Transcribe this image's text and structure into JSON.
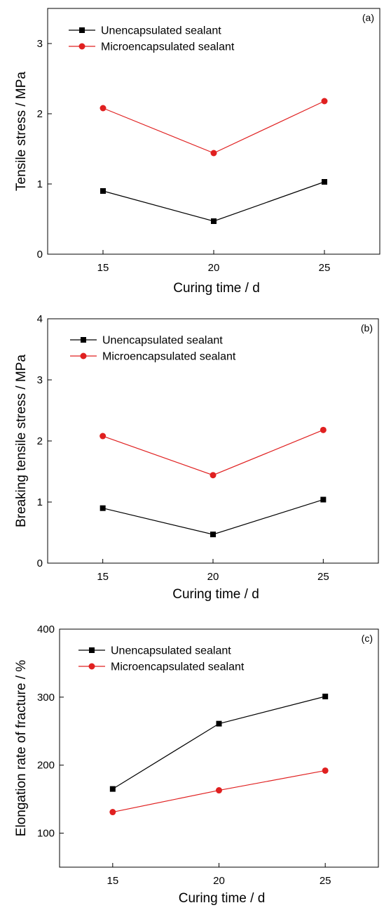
{
  "chart_data": [
    {
      "type": "line",
      "panel_label": "(a)",
      "xlabel": "Curing time / d",
      "ylabel": "Tensile stress / MPa",
      "categories": [
        "15",
        "20",
        "25"
      ],
      "x": [
        15,
        20,
        25
      ],
      "xlim": [
        12.5,
        27.5
      ],
      "ylim": [
        0,
        3.5
      ],
      "yticks": [
        0,
        1,
        2,
        3
      ],
      "xticks": [
        15,
        20,
        25
      ],
      "legend_position": "top-left",
      "grid": false,
      "series": [
        {
          "name": "Unencapsulated sealant",
          "values": [
            0.9,
            0.47,
            1.03
          ],
          "color": "#000000",
          "marker": "square"
        },
        {
          "name": "Microencapsulated sealant",
          "values": [
            2.08,
            1.44,
            2.18
          ],
          "color": "#e02020",
          "marker": "circle"
        }
      ]
    },
    {
      "type": "line",
      "panel_label": "(b)",
      "xlabel": "Curing time / d",
      "ylabel": "Breaking tensile stress / MPa",
      "categories": [
        "15",
        "20",
        "25"
      ],
      "x": [
        15,
        20,
        25
      ],
      "xlim": [
        12.5,
        27.5
      ],
      "ylim": [
        0,
        4
      ],
      "yticks": [
        0,
        1,
        2,
        3,
        4
      ],
      "xticks": [
        15,
        20,
        25
      ],
      "legend_position": "top-left",
      "grid": false,
      "series": [
        {
          "name": "Unencapsulated sealant",
          "values": [
            0.9,
            0.47,
            1.04
          ],
          "color": "#000000",
          "marker": "square"
        },
        {
          "name": "Microencapsulated sealant",
          "values": [
            2.08,
            1.44,
            2.18
          ],
          "color": "#e02020",
          "marker": "circle"
        }
      ]
    },
    {
      "type": "line",
      "panel_label": "(c)",
      "xlabel": "Curing time / d",
      "ylabel": "Elongation rate of fracture / %",
      "categories": [
        "15",
        "20",
        "25"
      ],
      "x": [
        15,
        20,
        25
      ],
      "xlim": [
        12.5,
        27.5
      ],
      "ylim": [
        50,
        400
      ],
      "yticks": [
        100,
        200,
        300,
        400
      ],
      "xticks": [
        15,
        20,
        25
      ],
      "legend_position": "top-left",
      "grid": false,
      "series": [
        {
          "name": "Unencapsulated sealant",
          "values": [
            165,
            261,
            301
          ],
          "color": "#000000",
          "marker": "square"
        },
        {
          "name": "Microencapsulated sealant",
          "values": [
            131,
            163,
            192
          ],
          "color": "#e02020",
          "marker": "circle"
        }
      ]
    }
  ]
}
